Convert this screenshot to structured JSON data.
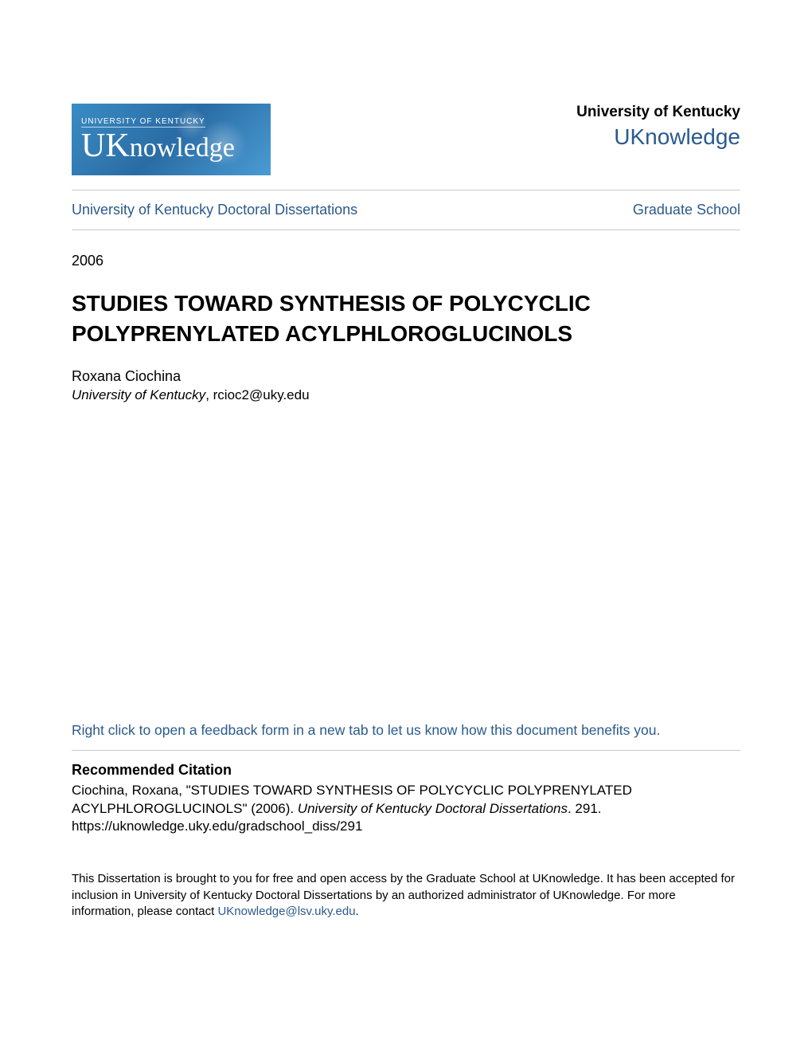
{
  "colors": {
    "link_blue": "#2a5a8c",
    "text_black": "#000000",
    "divider_gray": "#cccccc",
    "logo_bg_start": "#3a8cc4",
    "logo_bg_end": "#2a6ca5",
    "background": "#ffffff"
  },
  "typography": {
    "body_family": "Arial, Helvetica, sans-serif",
    "logo_family": "Georgia, serif",
    "title_size_pt": 21,
    "body_size_pt": 13,
    "small_size_pt": 11
  },
  "logo": {
    "top_text": "UNIVERSITY OF KENTUCKY",
    "main_cap": "U",
    "main_cap2": "K",
    "main_rest": "nowledge"
  },
  "header": {
    "university": "University of Kentucky",
    "repository": "UKnowledge"
  },
  "nav": {
    "left": "University of Kentucky Doctoral Dissertations",
    "right": "Graduate School"
  },
  "year": "2006",
  "title": "STUDIES TOWARD SYNTHESIS OF POLYCYCLIC POLYPRENYLATED ACYLPHLOROGLUCINOLS",
  "author": {
    "name": "Roxana Ciochina",
    "institution": "University of Kentucky",
    "email": "rcioc2@uky.edu"
  },
  "feedback": "Right click to open a feedback form in a new tab to let us know how this document benefits you.",
  "citation": {
    "heading": "Recommended Citation",
    "line1": "Ciochina, Roxana, \"STUDIES TOWARD SYNTHESIS OF POLYCYCLIC POLYPRENYLATED ACYLPHLOROGLUCINOLS\" (2006). ",
    "line1_ital": "University of Kentucky Doctoral Dissertations",
    "line1_suffix": ". 291.",
    "line2": "https://uknowledge.uky.edu/gradschool_diss/291"
  },
  "footer": {
    "text_part1": "This Dissertation is brought to you for free and open access by the Graduate School at UKnowledge. It has been accepted for inclusion in University of Kentucky Doctoral Dissertations by an authorized administrator of UKnowledge. For more information, please contact ",
    "email": "UKnowledge@lsv.uky.edu",
    "text_part2": "."
  }
}
